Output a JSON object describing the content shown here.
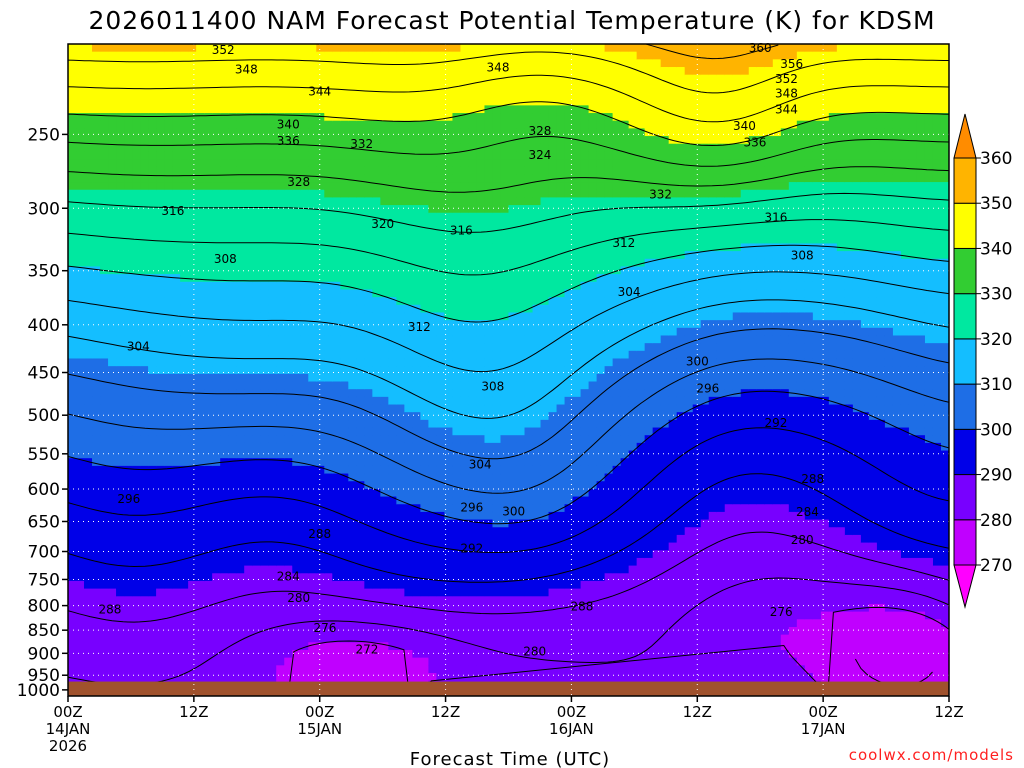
{
  "chart_data": {
    "type": "contour",
    "title": "2026011400 NAM Forecast Potential Temperature (K) for KDSM",
    "xlabel": "Forecast Time (UTC)",
    "credit": "coolwx.com/models",
    "x_ticks": [
      {
        "hours": 0,
        "line1": "00Z",
        "line2": "14JAN",
        "line3": "2026"
      },
      {
        "hours": 12,
        "line1": "12Z",
        "line2": "",
        "line3": ""
      },
      {
        "hours": 24,
        "line1": "00Z",
        "line2": "15JAN",
        "line3": ""
      },
      {
        "hours": 36,
        "line1": "12Z",
        "line2": "",
        "line3": ""
      },
      {
        "hours": 48,
        "line1": "00Z",
        "line2": "16JAN",
        "line3": ""
      },
      {
        "hours": 60,
        "line1": "12Z",
        "line2": "",
        "line3": ""
      },
      {
        "hours": 72,
        "line1": "00Z",
        "line2": "17JAN",
        "line3": ""
      },
      {
        "hours": 84,
        "line1": "12Z",
        "line2": "",
        "line3": ""
      }
    ],
    "y_ticks": [
      "250",
      "300",
      "350",
      "400",
      "450",
      "500",
      "550",
      "600",
      "650",
      "700",
      "750",
      "800",
      "850",
      "900",
      "950",
      "1000"
    ],
    "y_tick_values": [
      250,
      300,
      350,
      400,
      450,
      500,
      550,
      600,
      650,
      700,
      750,
      800,
      850,
      900,
      950,
      1000
    ],
    "ylim_hpa": [
      1000,
      200
    ],
    "xlim_hours": [
      0,
      84
    ],
    "colorbar": {
      "levels": [
        "270",
        "280",
        "290",
        "300",
        "310",
        "320",
        "330",
        "340",
        "350",
        "360"
      ],
      "level_values": [
        270,
        280,
        290,
        300,
        310,
        320,
        330,
        340,
        350,
        360
      ],
      "colors": [
        "#ff00ff",
        "#c000ff",
        "#7800ff",
        "#0000e8",
        "#1e6ee6",
        "#14beff",
        "#00e8a0",
        "#32cd32",
        "#ffff00",
        "#ffb400",
        "#ff8c00"
      ]
    },
    "contour_interval_K": 4,
    "ground_color": "#a0522d",
    "contour_labels": [
      {
        "text": "352",
        "hours": 14.8,
        "hpa": 203
      },
      {
        "text": "348",
        "hours": 17.0,
        "hpa": 213
      },
      {
        "text": "344",
        "hours": 24.0,
        "hpa": 225
      },
      {
        "text": "340",
        "hours": 21.0,
        "hpa": 244
      },
      {
        "text": "336",
        "hours": 21.0,
        "hpa": 254
      },
      {
        "text": "332",
        "hours": 28.0,
        "hpa": 256
      },
      {
        "text": "328",
        "hours": 22.0,
        "hpa": 281
      },
      {
        "text": "316",
        "hours": 10.0,
        "hpa": 302
      },
      {
        "text": "320",
        "hours": 30.0,
        "hpa": 312
      },
      {
        "text": "316",
        "hours": 37.5,
        "hpa": 317
      },
      {
        "text": "308",
        "hours": 15.0,
        "hpa": 340
      },
      {
        "text": "312",
        "hours": 33.5,
        "hpa": 402
      },
      {
        "text": "304",
        "hours": 6.7,
        "hpa": 422
      },
      {
        "text": "308",
        "hours": 40.5,
        "hpa": 466
      },
      {
        "text": "304",
        "hours": 39.3,
        "hpa": 565
      },
      {
        "text": "296",
        "hours": 5.8,
        "hpa": 615
      },
      {
        "text": "296",
        "hours": 38.5,
        "hpa": 628
      },
      {
        "text": "300",
        "hours": 42.5,
        "hpa": 634
      },
      {
        "text": "292",
        "hours": 38.5,
        "hpa": 695
      },
      {
        "text": "288",
        "hours": 24.0,
        "hpa": 670
      },
      {
        "text": "284",
        "hours": 21.0,
        "hpa": 745
      },
      {
        "text": "280",
        "hours": 22.0,
        "hpa": 785
      },
      {
        "text": "288",
        "hours": 4.0,
        "hpa": 808
      },
      {
        "text": "276",
        "hours": 24.5,
        "hpa": 845
      },
      {
        "text": "272",
        "hours": 28.5,
        "hpa": 892
      },
      {
        "text": "280",
        "hours": 44.5,
        "hpa": 896
      },
      {
        "text": "288",
        "hours": 49.0,
        "hpa": 802
      },
      {
        "text": "348",
        "hours": 41.0,
        "hpa": 212
      },
      {
        "text": "328",
        "hours": 45.0,
        "hpa": 248
      },
      {
        "text": "324",
        "hours": 45.0,
        "hpa": 263
      },
      {
        "text": "332",
        "hours": 56.5,
        "hpa": 290
      },
      {
        "text": "312",
        "hours": 53.0,
        "hpa": 327
      },
      {
        "text": "304",
        "hours": 53.5,
        "hpa": 369
      },
      {
        "text": "360",
        "hours": 66.0,
        "hpa": 202
      },
      {
        "text": "356",
        "hours": 69.0,
        "hpa": 210
      },
      {
        "text": "352",
        "hours": 68.5,
        "hpa": 218
      },
      {
        "text": "348",
        "hours": 68.5,
        "hpa": 226
      },
      {
        "text": "344",
        "hours": 68.5,
        "hpa": 235
      },
      {
        "text": "340",
        "hours": 64.5,
        "hpa": 245
      },
      {
        "text": "336",
        "hours": 65.5,
        "hpa": 255
      },
      {
        "text": "316",
        "hours": 67.5,
        "hpa": 307
      },
      {
        "text": "308",
        "hours": 70.0,
        "hpa": 337
      },
      {
        "text": "300",
        "hours": 60.0,
        "hpa": 438
      },
      {
        "text": "296",
        "hours": 61.0,
        "hpa": 468
      },
      {
        "text": "292",
        "hours": 67.5,
        "hpa": 510
      },
      {
        "text": "288",
        "hours": 71.0,
        "hpa": 585
      },
      {
        "text": "284",
        "hours": 70.5,
        "hpa": 635
      },
      {
        "text": "280",
        "hours": 70.0,
        "hpa": 680
      },
      {
        "text": "276",
        "hours": 68.0,
        "hpa": 813
      }
    ]
  }
}
